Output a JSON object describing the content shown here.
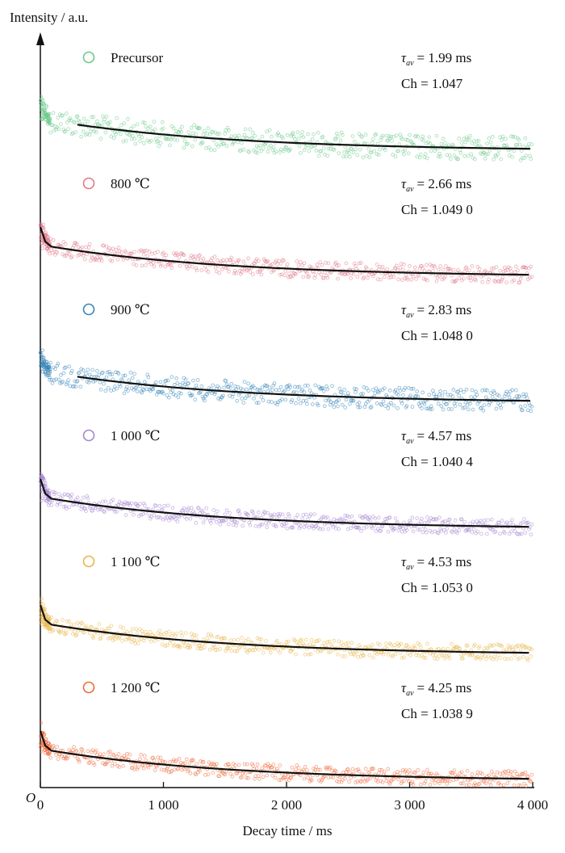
{
  "chart_data": {
    "type": "scatter",
    "title": "",
    "xlabel": "Decay time / ms",
    "ylabel": "Intensity / a.u.",
    "xlim": [
      0,
      4000
    ],
    "x_ticks": [
      0,
      1000,
      2000,
      3000,
      4000
    ],
    "x_tick_labels": [
      "0",
      "1 000",
      "2 000",
      "3 000",
      "4 000"
    ],
    "y_origin_label": "O",
    "grid": false,
    "legend": "per-panel, top-left of each panel",
    "fit_color": "#111111",
    "tau_symbol": "τ",
    "tau_subscript": "av",
    "series": [
      {
        "name": "Precursor",
        "tau": "= 1.99 ms",
        "ch": "Ch = 1.047",
        "color": "#6cc98a",
        "fit_start_ms": 300,
        "noise": 0.35
      },
      {
        "name": "800 ℃",
        "tau": "= 2.66 ms",
        "ch": "Ch = 1.049 0",
        "color": "#e07a8a",
        "fit_start_ms": 0,
        "noise": 0.18
      },
      {
        "name": "900 ℃",
        "tau": "= 2.83 ms",
        "ch": "Ch = 1.048 0",
        "color": "#3a86b8",
        "fit_start_ms": 300,
        "noise": 0.28
      },
      {
        "name": "1 000 ℃",
        "tau": "= 4.57 ms",
        "ch": "Ch = 1.040 4",
        "color": "#a585cf",
        "fit_start_ms": 0,
        "noise": 0.14
      },
      {
        "name": "1 100 ℃",
        "tau": "= 4.53 ms",
        "ch": "Ch = 1.053 0",
        "color": "#e8b548",
        "fit_start_ms": 0,
        "noise": 0.14
      },
      {
        "name": "1 200 ℃",
        "tau": "= 4.25 ms",
        "ch": "Ch = 1.038 9",
        "color": "#ef6a3a",
        "fit_start_ms": 0,
        "noise": 0.14
      }
    ]
  }
}
